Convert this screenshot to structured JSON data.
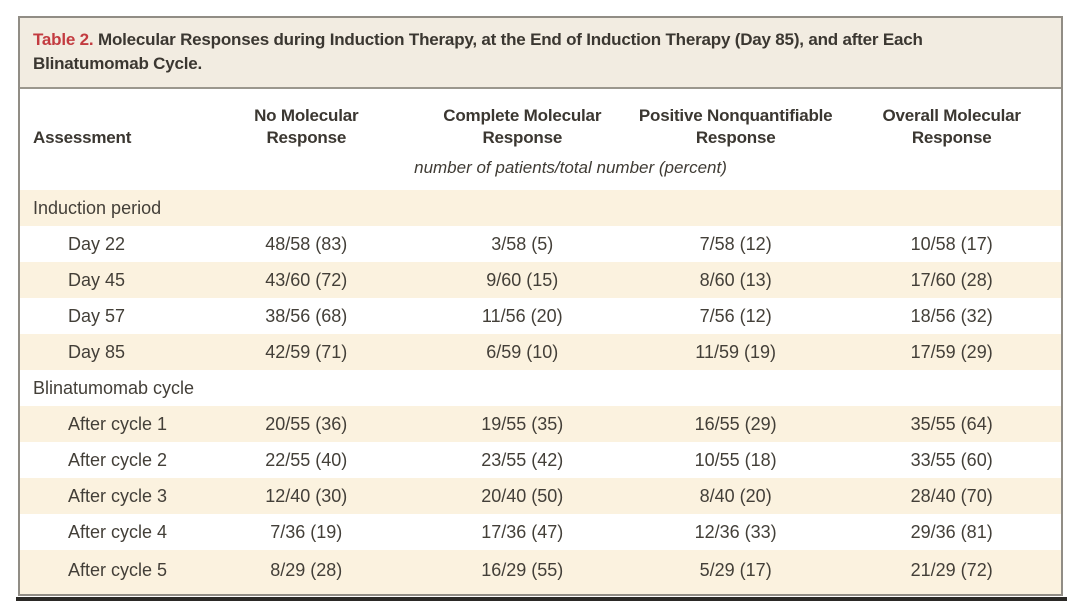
{
  "table": {
    "label": "Table 2.",
    "title": "Molecular Responses during Induction Therapy, at the End of Induction Therapy (Day 85), and after Each\nBlinatumomab Cycle.",
    "columns": [
      "Assessment",
      "No Molecular\nResponse",
      "Complete Molecular\nResponse",
      "Positive Nonquantifiable\nResponse",
      "Overall Molecular\nResponse"
    ],
    "units_note": "number of patients/total number (percent)",
    "sections": [
      {
        "heading": "Induction period",
        "rows": [
          {
            "label": "Day 22",
            "values": [
              "48/58 (83)",
              "3/58 (5)",
              "7/58 (12)",
              "10/58 (17)"
            ]
          },
          {
            "label": "Day 45",
            "values": [
              "43/60 (72)",
              "9/60 (15)",
              "8/60 (13)",
              "17/60 (28)"
            ]
          },
          {
            "label": "Day 57",
            "values": [
              "38/56 (68)",
              "11/56 (20)",
              "7/56 (12)",
              "18/56 (32)"
            ]
          },
          {
            "label": "Day 85",
            "values": [
              "42/59 (71)",
              "6/59 (10)",
              "11/59 (19)",
              "17/59 (29)"
            ]
          }
        ]
      },
      {
        "heading": "Blinatumomab cycle",
        "rows": [
          {
            "label": "After cycle 1",
            "values": [
              "20/55 (36)",
              "19/55 (35)",
              "16/55 (29)",
              "35/55 (64)"
            ]
          },
          {
            "label": "After cycle 2",
            "values": [
              "22/55 (40)",
              "23/55 (42)",
              "10/55 (18)",
              "33/55 (60)"
            ]
          },
          {
            "label": "After cycle 3",
            "values": [
              "12/40 (30)",
              "20/40 (50)",
              "8/40 (20)",
              "28/40 (70)"
            ]
          },
          {
            "label": "After cycle 4",
            "values": [
              "7/36 (19)",
              "17/36 (47)",
              "12/36 (33)",
              "29/36 (81)"
            ]
          },
          {
            "label": "After cycle 5",
            "values": [
              "8/29 (28)",
              "16/29 (55)",
              "5/29 (17)",
              "21/29 (72)"
            ]
          }
        ]
      }
    ],
    "colors": {
      "accent_red": "#c33b40",
      "title_bar_bg": "#f2ece1",
      "stripe_bg": "#fbf2df",
      "border_gray": "#918d85",
      "text": "#3b3731",
      "bottom_rule": "#2b2926"
    }
  }
}
